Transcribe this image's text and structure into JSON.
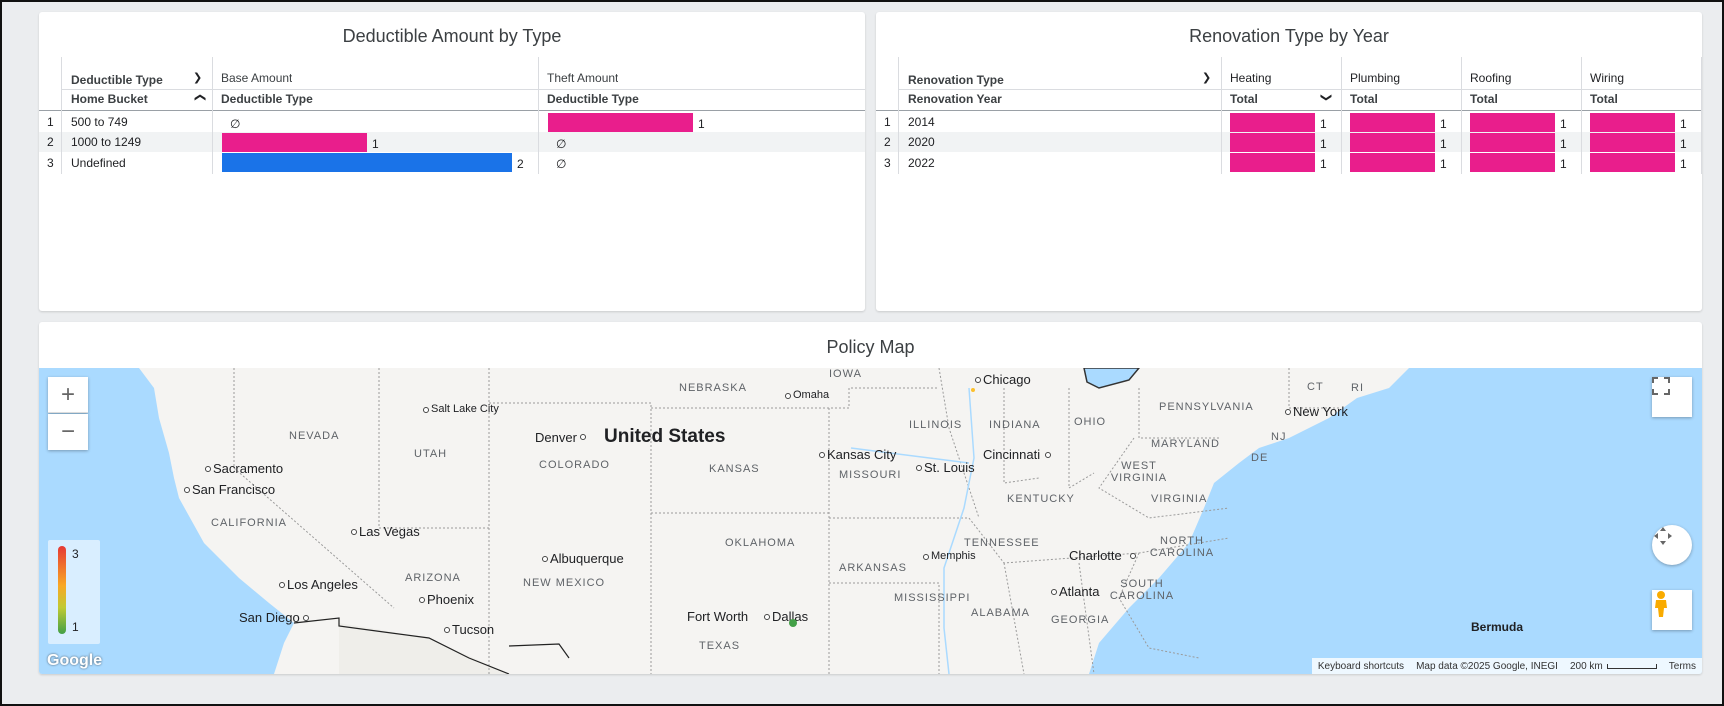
{
  "deductible_card": {
    "title": "Deductible Amount by Type",
    "row_dim_header": "Deductible Type",
    "row_sub_header": "Home Bucket",
    "columns": [
      {
        "label": "Base Amount",
        "sub": "Deductible Type"
      },
      {
        "label": "Theft Amount",
        "sub": "Deductible Type"
      }
    ],
    "rows": [
      {
        "index": "1",
        "label": "500 to 749",
        "base": "∅",
        "theft": 1
      },
      {
        "index": "2",
        "label": "1000 to 1249",
        "base": 1,
        "theft": "∅"
      },
      {
        "index": "3",
        "label": "Undefined",
        "base": 2,
        "theft": "∅"
      }
    ],
    "max_value": 2,
    "base_labels": [
      "∅",
      "1",
      "2"
    ],
    "theft_labels": [
      "1",
      "∅",
      "∅"
    ]
  },
  "renovation_card": {
    "title": "Renovation Type by Year",
    "row_dim_header": "Renovation Type",
    "row_sub_header": "Renovation Year",
    "columns": [
      {
        "label": "Heating",
        "sub": "Total"
      },
      {
        "label": "Plumbing",
        "sub": "Total"
      },
      {
        "label": "Roofing",
        "sub": "Total"
      },
      {
        "label": "Wiring",
        "sub": "Total"
      }
    ],
    "rows": [
      {
        "index": "1",
        "label": "2014",
        "values": [
          1,
          1,
          1,
          1
        ]
      },
      {
        "index": "2",
        "label": "2020",
        "values": [
          1,
          1,
          1,
          1
        ]
      },
      {
        "index": "3",
        "label": "2022",
        "values": [
          1,
          1,
          1,
          1
        ]
      }
    ],
    "value_label": "1"
  },
  "map_card": {
    "title": "Policy Map",
    "country": "United States",
    "states": [
      "NEBRASKA",
      "IOWA",
      "NEVADA",
      "UTAH",
      "COLORADO",
      "KANSAS",
      "MISSOURI",
      "ILLINOIS",
      "INDIANA",
      "OHIO",
      "PENNSYLVANIA",
      "CALIFORNIA",
      "ARIZONA",
      "NEW MEXICO",
      "OKLAHOMA",
      "ARKANSAS",
      "TENNESSEE",
      "KENTUCKY",
      "WEST VIRGINIA",
      "VIRGINIA",
      "NORTH CAROLINA",
      "SOUTH CAROLINA",
      "GEORGIA",
      "ALABAMA",
      "MISSISSIPPI",
      "TEXAS",
      "MARYLAND",
      "NJ",
      "DE",
      "CT",
      "RI"
    ],
    "cities": [
      "Chicago",
      "Omaha",
      "Salt Lake City",
      "Denver",
      "Kansas City",
      "St. Louis",
      "Cincinnati",
      "New York",
      "Sacramento",
      "San Francisco",
      "Las Vegas",
      "Albuquerque",
      "Los Angeles",
      "Phoenix",
      "San Diego",
      "Tucson",
      "Fort Worth",
      "Dallas",
      "Memphis",
      "Charlotte",
      "Atlanta",
      "Bermuda"
    ],
    "legend": {
      "max": "3",
      "min": "1"
    },
    "logo": "Google",
    "attribution": [
      "Keyboard shortcuts",
      "Map data ©2025 Google, INEGI",
      "200 km",
      "Terms"
    ],
    "zoom_in": "+",
    "zoom_out": "−"
  },
  "colors": {
    "pink": "#e91e8c",
    "blue": "#1a73e8",
    "water": "#aadaff",
    "land": "#f5f4f2"
  }
}
